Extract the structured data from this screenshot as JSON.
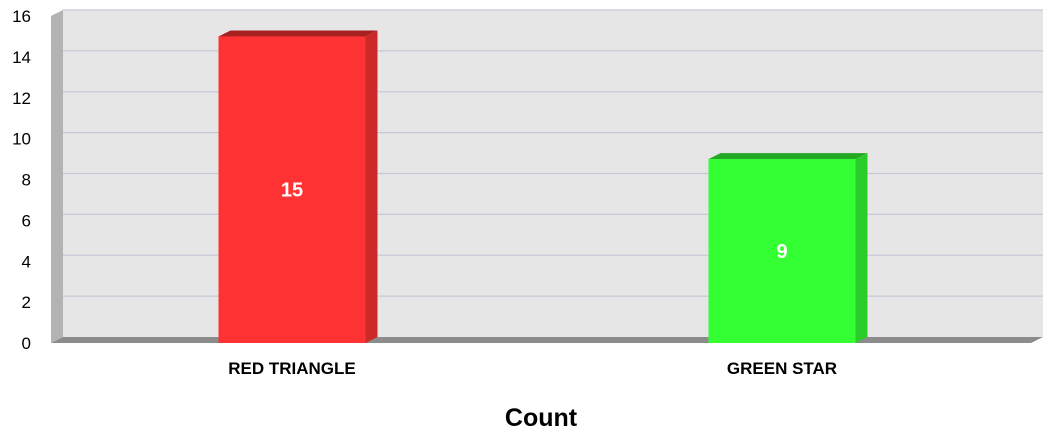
{
  "chart_data": {
    "type": "bar",
    "categories": [
      "RED TRIANGLE",
      "GREEN STAR"
    ],
    "values": [
      15,
      9
    ],
    "title": "",
    "xlabel": "Count",
    "ylabel": "",
    "ylim": [
      0,
      16
    ],
    "yticks": [
      0,
      2,
      4,
      6,
      8,
      10,
      12,
      14,
      16
    ],
    "data_labels": [
      "15",
      "9"
    ],
    "grid": true,
    "legend": "none",
    "style": "3d",
    "colors": {
      "bars": [
        "#ff3333",
        "#33ff33"
      ],
      "bar_sides": [
        "#cc2929",
        "#29cc29"
      ],
      "bar_tops": [
        "#a82222",
        "#22a822"
      ],
      "plot_background": "#e6e6e6",
      "left_wall": "#b3b3b3",
      "floor": "#8c8c8c",
      "gridline": "#c8c8d8"
    }
  }
}
